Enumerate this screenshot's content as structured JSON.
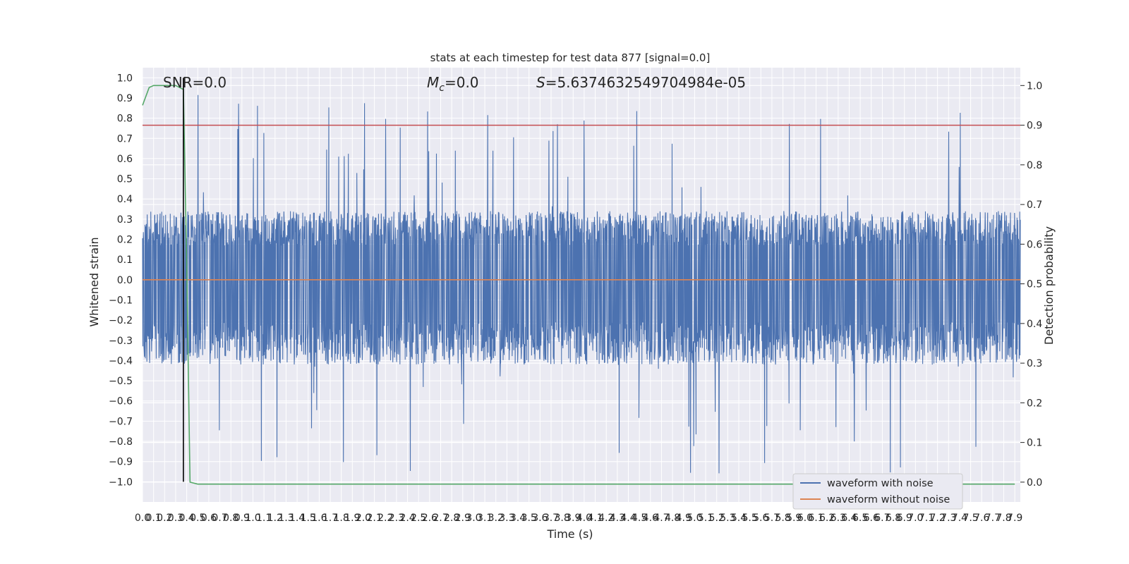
{
  "chart_data": {
    "type": "line",
    "title": "stats at each timestep for test data 877 [signal=0.0]",
    "xlabel": "Time (s)",
    "ylabel": "Whitened strain",
    "y2label": "Detection probability",
    "xlim": [
      0.0,
      7.95
    ],
    "ylim": [
      -1.1,
      1.05
    ],
    "y2lim": [
      -0.05,
      1.045
    ],
    "x_ticks": [
      "0.0",
      "0.1",
      "0.2",
      "0.3",
      "0.4",
      "0.5",
      "0.6",
      "0.7",
      "0.8",
      "0.9",
      "1.0",
      "1.1",
      "1.2",
      "1.3",
      "1.4",
      "1.5",
      "1.6",
      "1.7",
      "1.8",
      "1.9",
      "2.0",
      "2.1",
      "2.2",
      "2.3",
      "2.4",
      "2.5",
      "2.6",
      "2.7",
      "2.8",
      "2.9",
      "3.0",
      "3.1",
      "3.2",
      "3.3",
      "3.4",
      "3.5",
      "3.6",
      "3.7",
      "3.8",
      "3.9",
      "4.0",
      "4.1",
      "4.2",
      "4.3",
      "4.4",
      "4.5",
      "4.6",
      "4.7",
      "4.8",
      "4.9",
      "5.0",
      "5.1",
      "5.2",
      "5.3",
      "5.4",
      "5.5",
      "5.6",
      "5.7",
      "5.8",
      "5.9",
      "6.0",
      "6.1",
      "6.2",
      "6.3",
      "6.4",
      "6.5",
      "6.6",
      "6.7",
      "6.8",
      "6.9",
      "7.0",
      "7.1",
      "7.2",
      "7.3",
      "7.4",
      "7.5",
      "7.6",
      "7.7",
      "7.8",
      "7.9"
    ],
    "y_ticks": [
      "1.0",
      "0.9",
      "0.8",
      "0.7",
      "0.6",
      "0.5",
      "0.4",
      "0.3",
      "0.2",
      "0.1",
      "0.0",
      "−0.1",
      "−0.2",
      "−0.3",
      "−0.4",
      "−0.5",
      "−0.6",
      "−0.7",
      "−0.8",
      "−0.9",
      "−1.0"
    ],
    "y2_ticks": [
      "1.0",
      "0.9",
      "0.8",
      "0.7",
      "0.6",
      "0.5",
      "0.4",
      "0.3",
      "0.2",
      "0.1",
      "0.0"
    ],
    "annotations": {
      "snr": "SNR=0.0",
      "mc": "=0.0",
      "s": "=5.6374632549704984e-05"
    },
    "series": [
      {
        "name": "waveform with noise",
        "color": "#4c72b0",
        "envelope": {
          "typical_min": -0.42,
          "typical_max": 0.34,
          "peak_max": 0.92,
          "peak_min": -0.96
        }
      },
      {
        "name": "waveform without noise",
        "color": "#dd8452",
        "values": "constant 0.0"
      }
    ],
    "detection_probability": {
      "color": "#55a868",
      "x": [
        0.0,
        0.06,
        0.1,
        0.15,
        0.2,
        0.25,
        0.3,
        0.37,
        0.4,
        0.43,
        0.5,
        7.9
      ],
      "y": [
        0.95,
        0.995,
        1.0,
        1.0,
        1.0,
        1.0,
        1.0,
        0.99,
        0.55,
        0.0,
        -0.005,
        -0.005
      ]
    },
    "threshold_line": {
      "color": "#c44e52",
      "y2": 0.9
    },
    "marker_line": {
      "color": "#000000",
      "x": 0.37
    },
    "legend": {
      "placement": "lower right",
      "entries": [
        "waveform with noise",
        "waveform without noise"
      ]
    },
    "grid": true,
    "background": "#eaeaf2"
  }
}
